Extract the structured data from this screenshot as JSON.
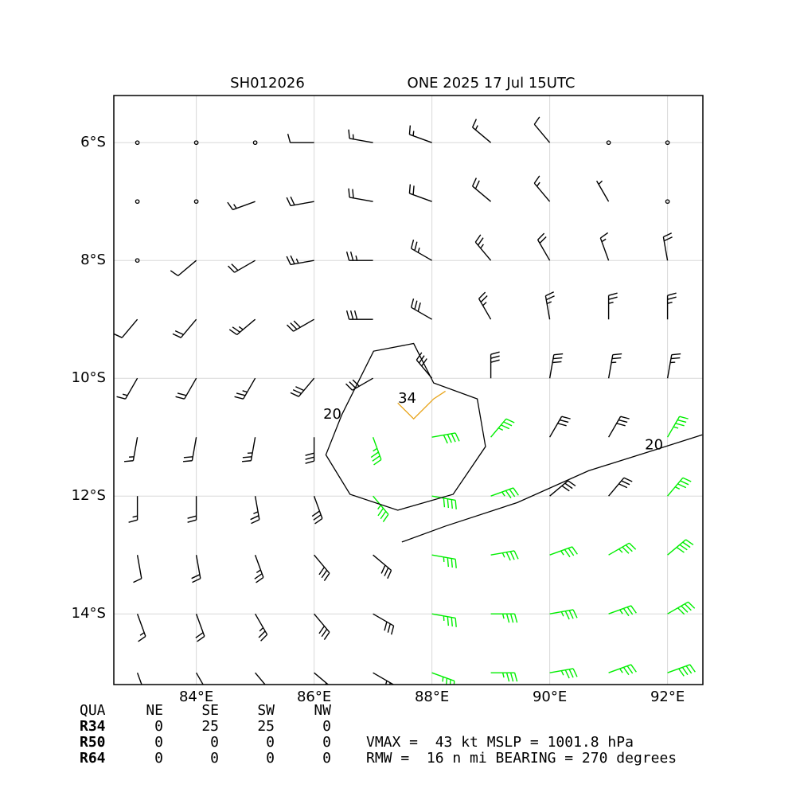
{
  "chart_data": {
    "type": "barbs",
    "title_left": "SH012026",
    "title_right": "ONE 2025 17 Jul 15UTC",
    "xlim": [
      82.6,
      92.6
    ],
    "ylim": [
      -15.2,
      -5.2
    ],
    "xticks": [
      {
        "value": 84,
        "label": "84°E"
      },
      {
        "value": 86,
        "label": "86°E"
      },
      {
        "value": 88,
        "label": "88°E"
      },
      {
        "value": 90,
        "label": "90°E"
      },
      {
        "value": 92,
        "label": "92°E"
      }
    ],
    "yticks": [
      {
        "value": -6,
        "label": "6°S"
      },
      {
        "value": -8,
        "label": "8°S"
      },
      {
        "value": -10,
        "label": "10°S"
      },
      {
        "value": -12,
        "label": "12°S"
      },
      {
        "value": -14,
        "label": "14°S"
      }
    ],
    "grid": true,
    "barb_color": "#000000",
    "strong_color": "#00ee00",
    "strong_threshold": 34,
    "lons": [
      83,
      84,
      85,
      86,
      87,
      88,
      89,
      90,
      91,
      92
    ],
    "lats": [
      -6,
      -7,
      -8,
      -9,
      -10,
      -11,
      -12,
      -13,
      -14,
      -15
    ],
    "speed": [
      [
        0,
        0,
        0,
        10,
        15,
        15,
        15,
        10,
        0,
        0
      ],
      [
        0,
        0,
        15,
        20,
        20,
        20,
        20,
        15,
        5,
        0
      ],
      [
        0,
        10,
        20,
        25,
        25,
        25,
        25,
        20,
        15,
        20
      ],
      [
        10,
        20,
        25,
        30,
        30,
        30,
        25,
        25,
        25,
        25
      ],
      [
        15,
        20,
        25,
        30,
        30,
        30,
        30,
        30,
        25,
        25
      ],
      [
        15,
        20,
        25,
        30,
        35,
        40,
        35,
        30,
        30,
        35
      ],
      [
        15,
        20,
        25,
        30,
        35,
        40,
        35,
        30,
        30,
        35
      ],
      [
        10,
        20,
        25,
        30,
        30,
        35,
        35,
        35,
        35,
        40
      ],
      [
        15,
        20,
        25,
        30,
        30,
        35,
        35,
        35,
        35,
        40
      ],
      [
        20,
        25,
        25,
        30,
        30,
        35,
        35,
        35,
        35,
        40
      ]
    ],
    "direction": [
      [
        240,
        250,
        260,
        270,
        280,
        290,
        310,
        320,
        330,
        330
      ],
      [
        240,
        240,
        250,
        260,
        280,
        290,
        310,
        320,
        330,
        340
      ],
      [
        230,
        230,
        240,
        260,
        270,
        300,
        320,
        330,
        340,
        350
      ],
      [
        220,
        220,
        230,
        240,
        270,
        300,
        330,
        350,
        0,
        0
      ],
      [
        210,
        210,
        210,
        220,
        240,
        320,
        0,
        10,
        10,
        10
      ],
      [
        190,
        190,
        190,
        180,
        160,
        80,
        40,
        30,
        30,
        30
      ],
      [
        180,
        180,
        170,
        160,
        140,
        100,
        70,
        50,
        40,
        40
      ],
      [
        170,
        170,
        160,
        140,
        130,
        100,
        80,
        70,
        60,
        50
      ],
      [
        160,
        160,
        150,
        140,
        120,
        100,
        90,
        80,
        70,
        60
      ],
      [
        160,
        150,
        140,
        130,
        120,
        110,
        90,
        80,
        70,
        70
      ]
    ],
    "contours": [
      {
        "level": 20,
        "color": "#000000",
        "closed": true,
        "lon": [
          86.47,
          87.01,
          87.69,
          88.03,
          88.77,
          88.91,
          88.36,
          87.42,
          86.61,
          86.2
        ],
        "lat": [
          -10.62,
          -9.54,
          -9.41,
          -10.08,
          -10.35,
          -11.16,
          -11.97,
          -12.24,
          -11.97,
          -11.3
        ]
      },
      {
        "level": 20,
        "color": "#000000",
        "closed": false,
        "lon": [
          87.49,
          88.23,
          89.45,
          90.66,
          91.74,
          92.59
        ],
        "lat": [
          -12.78,
          -12.51,
          -12.11,
          -11.57,
          -11.23,
          -10.96
        ]
      },
      {
        "level": 34,
        "color": "#e8a317",
        "closed": false,
        "lon": [
          87.42,
          87.69,
          88.03,
          88.23
        ],
        "lat": [
          -10.42,
          -10.69,
          -10.35,
          -10.22
        ]
      }
    ],
    "contour_labels": [
      {
        "value": 34,
        "lon": 87.58,
        "lat": -10.35
      },
      {
        "value": 20,
        "lon": 86.31,
        "lat": -10.62
      },
      {
        "value": 20,
        "lon": 91.77,
        "lat": -11.14
      }
    ],
    "radii_table": {
      "header": [
        "QUA",
        "NE",
        "SE",
        "SW",
        "NW"
      ],
      "rows": [
        [
          "R34",
          0,
          25,
          25,
          0
        ],
        [
          "R50",
          0,
          0,
          0,
          0
        ],
        [
          "R64",
          0,
          0,
          0,
          0
        ]
      ]
    },
    "info": [
      "VMAX =  43 kt MSLP = 1001.8 hPa",
      "RMW =  16 n mi BEARING = 270 degrees"
    ]
  }
}
